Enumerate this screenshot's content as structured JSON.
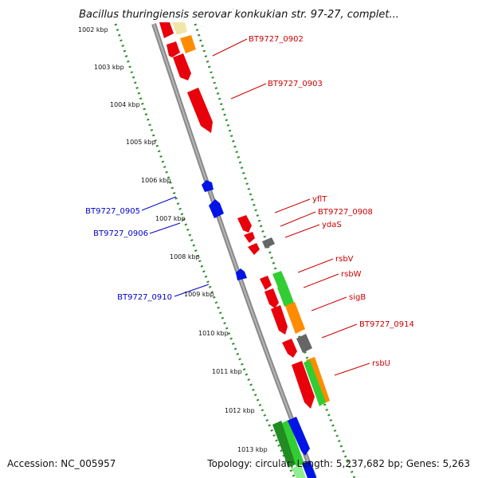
{
  "title": "Bacillus thuringiensis serovar konkukian str. 97-27, complet...",
  "footer": {
    "accession": "Accession: NC_005957",
    "topology": "Topology: circular; Length: 5,237,682 bp; Genes: 5,263"
  },
  "colors": {
    "forward_gene": "#e8000b",
    "reverse_gene": "#0014e6",
    "tick": "#2e8b2e",
    "backbone": "#8a8a8a",
    "orange_gene": "#ff8c00",
    "green_gene": "#32cd32",
    "gray_gene": "#666666",
    "label_forward": "#cc0000",
    "label_reverse": "#0000cc"
  },
  "kbp_ticks": [
    "1002 kbp",
    "1003 kbp",
    "1004 kbp",
    "1005 kbp",
    "1006 kbp",
    "1007 kbp",
    "1008 kbp",
    "1009 kbp",
    "1010 kbp",
    "1011 kbp",
    "1012 kbp",
    "1013 kbp"
  ],
  "gene_labels": {
    "BT9727_0902": "BT9727_0902",
    "BT9727_0903": "BT9727_0903",
    "yflT": "yflT",
    "BT9727_0908": "BT9727_0908",
    "ydaS": "ydaS",
    "rsbV": "rsbV",
    "rsbW": "rsbW",
    "sigB": "sigB",
    "BT9727_0914": "BT9727_0914",
    "rsbU": "rsbU",
    "BT9727_0905": "BT9727_0905",
    "BT9727_0906": "BT9727_0906",
    "BT9727_0910": "BT9727_0910"
  }
}
